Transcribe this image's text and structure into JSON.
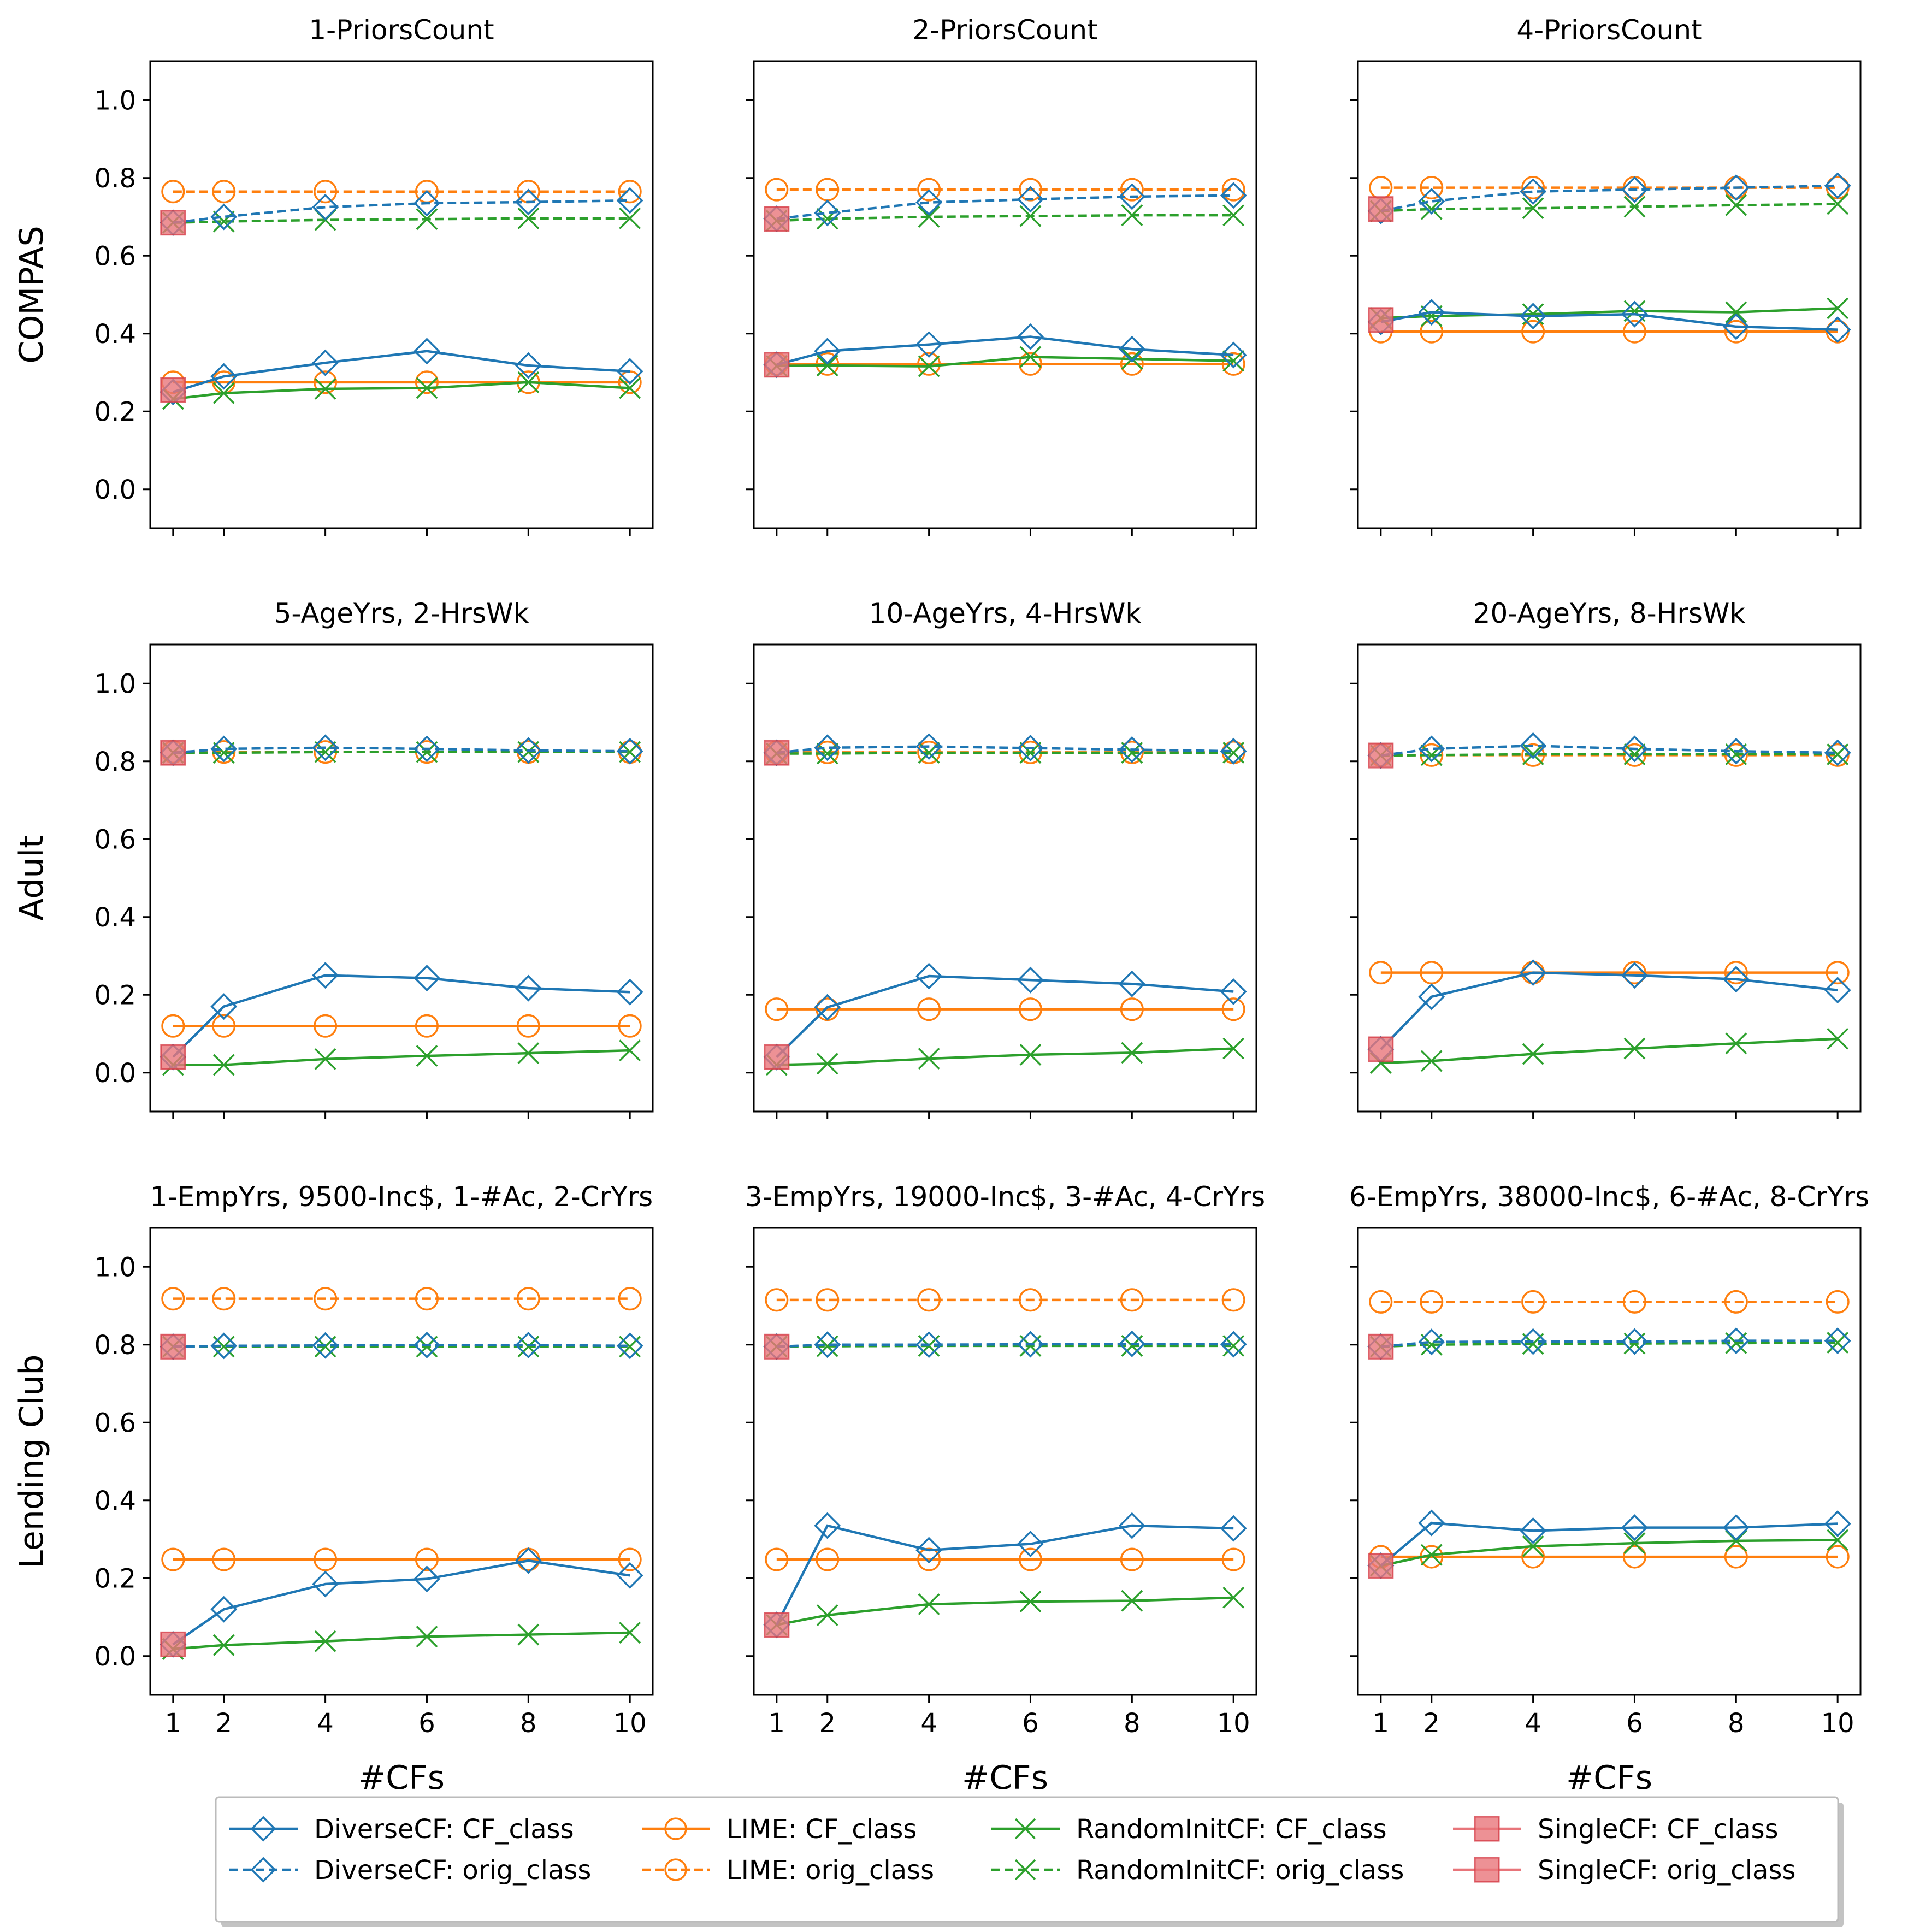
{
  "chart_data": {
    "type": "line",
    "xlabel": "#CFs",
    "x": [
      1,
      2,
      4,
      6,
      8,
      10
    ],
    "xticks": [
      1,
      2,
      4,
      6,
      8,
      10
    ],
    "ylim": [
      -0.1,
      1.1
    ],
    "yticks": [
      "0.0",
      "0.2",
      "0.4",
      "0.6",
      "0.8",
      "1.0"
    ],
    "row_labels": [
      "COMPAS",
      "Adult",
      "Lending Club"
    ],
    "legend": {
      "placement": "bottom-center",
      "entries": [
        {
          "key": "diverse_cf",
          "label": "DiverseCF: CF_class",
          "color": "#1f77b4",
          "marker": "diamond",
          "dashed": false
        },
        {
          "key": "diverse_orig",
          "label": "DiverseCF: orig_class",
          "color": "#1f77b4",
          "marker": "diamond",
          "dashed": true
        },
        {
          "key": "lime_cf",
          "label": "LIME: CF_class",
          "color": "#ff7f0e",
          "marker": "circle",
          "dashed": false
        },
        {
          "key": "lime_orig",
          "label": "LIME: orig_class",
          "color": "#ff7f0e",
          "marker": "circle",
          "dashed": true
        },
        {
          "key": "random_cf",
          "label": "RandomInitCF: CF_class",
          "color": "#2ca02c",
          "marker": "x",
          "dashed": false
        },
        {
          "key": "random_orig",
          "label": "RandomInitCF: orig_class",
          "color": "#2ca02c",
          "marker": "x",
          "dashed": true
        },
        {
          "key": "single_cf",
          "label": "SingleCF: CF_class",
          "color": "#e8757a",
          "marker": "square",
          "dashed": false
        },
        {
          "key": "single_orig",
          "label": "SingleCF: orig_class",
          "color": "#e8757a",
          "marker": "square",
          "dashed": false
        }
      ]
    },
    "panels": [
      {
        "title": "1-PriorsCount",
        "row": 0,
        "col": 0,
        "series": {
          "diverse_cf": [
            0.25,
            0.29,
            0.325,
            0.355,
            0.318,
            0.303
          ],
          "diverse_orig": [
            0.685,
            0.7,
            0.725,
            0.735,
            0.738,
            0.742
          ],
          "lime_cf": [
            0.275,
            0.275,
            0.275,
            0.275,
            0.275,
            0.275
          ],
          "lime_orig": [
            0.765,
            0.765,
            0.765,
            0.765,
            0.765,
            0.765
          ],
          "random_cf": [
            0.232,
            0.247,
            0.258,
            0.26,
            0.275,
            0.26
          ],
          "random_orig": [
            0.685,
            0.688,
            0.692,
            0.694,
            0.696,
            0.696
          ],
          "single_cf": [
            0.255
          ],
          "single_orig": [
            0.685
          ]
        }
      },
      {
        "title": "2-PriorsCount",
        "row": 0,
        "col": 1,
        "series": {
          "diverse_cf": [
            0.32,
            0.355,
            0.372,
            0.392,
            0.36,
            0.345
          ],
          "diverse_orig": [
            0.695,
            0.71,
            0.737,
            0.745,
            0.752,
            0.755
          ],
          "lime_cf": [
            0.322,
            0.322,
            0.322,
            0.322,
            0.322,
            0.322
          ],
          "lime_orig": [
            0.77,
            0.77,
            0.77,
            0.77,
            0.77,
            0.77
          ],
          "random_cf": [
            0.317,
            0.318,
            0.316,
            0.34,
            0.335,
            0.33
          ],
          "random_orig": [
            0.69,
            0.695,
            0.7,
            0.702,
            0.704,
            0.704
          ],
          "single_cf": [
            0.32
          ],
          "single_orig": [
            0.695
          ]
        }
      },
      {
        "title": "4-PriorsCount",
        "row": 0,
        "col": 2,
        "series": {
          "diverse_cf": [
            0.43,
            0.455,
            0.445,
            0.45,
            0.418,
            0.41
          ],
          "diverse_orig": [
            0.715,
            0.74,
            0.765,
            0.77,
            0.775,
            0.78
          ],
          "lime_cf": [
            0.405,
            0.405,
            0.405,
            0.405,
            0.405,
            0.405
          ],
          "lime_orig": [
            0.775,
            0.775,
            0.775,
            0.775,
            0.775,
            0.775
          ],
          "random_cf": [
            0.44,
            0.445,
            0.45,
            0.458,
            0.455,
            0.465
          ],
          "random_orig": [
            0.715,
            0.72,
            0.722,
            0.726,
            0.73,
            0.733
          ],
          "single_cf": [
            0.435
          ],
          "single_orig": [
            0.72
          ]
        }
      },
      {
        "title": "5-AgeYrs, 2-HrsWk",
        "row": 1,
        "col": 0,
        "series": {
          "diverse_cf": [
            0.04,
            0.17,
            0.25,
            0.243,
            0.217,
            0.207
          ],
          "diverse_orig": [
            0.822,
            0.832,
            0.835,
            0.832,
            0.828,
            0.826
          ],
          "lime_cf": [
            0.12,
            0.12,
            0.12,
            0.12,
            0.12,
            0.12
          ],
          "lime_orig": [
            0.824,
            0.824,
            0.824,
            0.824,
            0.824,
            0.824
          ],
          "random_cf": [
            0.02,
            0.02,
            0.035,
            0.043,
            0.05,
            0.057
          ],
          "random_orig": [
            0.822,
            0.822,
            0.824,
            0.824,
            0.824,
            0.824
          ],
          "single_cf": [
            0.04
          ],
          "single_orig": [
            0.822
          ]
        }
      },
      {
        "title": "10-AgeYrs, 4-HrsWk",
        "row": 1,
        "col": 1,
        "series": {
          "diverse_cf": [
            0.04,
            0.168,
            0.248,
            0.238,
            0.228,
            0.208
          ],
          "diverse_orig": [
            0.822,
            0.835,
            0.838,
            0.834,
            0.83,
            0.826
          ],
          "lime_cf": [
            0.163,
            0.163,
            0.163,
            0.163,
            0.163,
            0.163
          ],
          "lime_orig": [
            0.823,
            0.823,
            0.823,
            0.823,
            0.823,
            0.823
          ],
          "random_cf": [
            0.02,
            0.023,
            0.036,
            0.046,
            0.051,
            0.062
          ],
          "random_orig": [
            0.82,
            0.82,
            0.822,
            0.822,
            0.822,
            0.822
          ],
          "single_cf": [
            0.04
          ],
          "single_orig": [
            0.822
          ]
        }
      },
      {
        "title": "20-AgeYrs, 8-HrsWk",
        "row": 1,
        "col": 2,
        "series": {
          "diverse_cf": [
            0.06,
            0.195,
            0.257,
            0.25,
            0.24,
            0.212
          ],
          "diverse_orig": [
            0.815,
            0.832,
            0.84,
            0.832,
            0.826,
            0.822
          ],
          "lime_cf": [
            0.257,
            0.257,
            0.257,
            0.257,
            0.257,
            0.257
          ],
          "lime_orig": [
            0.816,
            0.816,
            0.816,
            0.816,
            0.816,
            0.816
          ],
          "random_cf": [
            0.025,
            0.03,
            0.048,
            0.062,
            0.075,
            0.087
          ],
          "random_orig": [
            0.815,
            0.816,
            0.818,
            0.818,
            0.818,
            0.818
          ],
          "single_cf": [
            0.06
          ],
          "single_orig": [
            0.815
          ]
        }
      },
      {
        "title": "1-EmpYrs, 9500-Inc$, 1-#Ac, 2-CrYrs",
        "row": 2,
        "col": 0,
        "series": {
          "diverse_cf": [
            0.03,
            0.12,
            0.185,
            0.198,
            0.245,
            0.207
          ],
          "diverse_orig": [
            0.795,
            0.797,
            0.798,
            0.799,
            0.799,
            0.797
          ],
          "lime_cf": [
            0.248,
            0.248,
            0.248,
            0.248,
            0.248,
            0.248
          ],
          "lime_orig": [
            0.918,
            0.918,
            0.918,
            0.918,
            0.918,
            0.918
          ],
          "random_cf": [
            0.018,
            0.028,
            0.038,
            0.05,
            0.055,
            0.06
          ],
          "random_orig": [
            0.795,
            0.795,
            0.795,
            0.795,
            0.795,
            0.795
          ],
          "single_cf": [
            0.03
          ],
          "single_orig": [
            0.795
          ]
        }
      },
      {
        "title": "3-EmpYrs, 19000-Inc$, 3-#Ac, 4-CrYrs",
        "row": 2,
        "col": 1,
        "series": {
          "diverse_cf": [
            0.08,
            0.335,
            0.272,
            0.288,
            0.335,
            0.328
          ],
          "diverse_orig": [
            0.795,
            0.8,
            0.8,
            0.801,
            0.802,
            0.801
          ],
          "lime_cf": [
            0.248,
            0.248,
            0.248,
            0.248,
            0.248,
            0.248
          ],
          "lime_orig": [
            0.915,
            0.915,
            0.915,
            0.915,
            0.915,
            0.915
          ],
          "random_cf": [
            0.08,
            0.105,
            0.133,
            0.14,
            0.142,
            0.15
          ],
          "random_orig": [
            0.795,
            0.796,
            0.797,
            0.797,
            0.797,
            0.797
          ],
          "single_cf": [
            0.08
          ],
          "single_orig": [
            0.795
          ]
        }
      },
      {
        "title": "6-EmpYrs, 38000-Inc$, 6-#Ac, 8-CrYrs",
        "row": 2,
        "col": 2,
        "series": {
          "diverse_cf": [
            0.232,
            0.342,
            0.322,
            0.33,
            0.33,
            0.34
          ],
          "diverse_orig": [
            0.795,
            0.807,
            0.808,
            0.808,
            0.81,
            0.81
          ],
          "lime_cf": [
            0.255,
            0.255,
            0.255,
            0.255,
            0.255,
            0.255
          ],
          "lime_orig": [
            0.91,
            0.91,
            0.91,
            0.91,
            0.91,
            0.91
          ],
          "random_cf": [
            0.232,
            0.26,
            0.282,
            0.29,
            0.296,
            0.298
          ],
          "random_orig": [
            0.795,
            0.8,
            0.802,
            0.803,
            0.804,
            0.805
          ],
          "single_cf": [
            0.232
          ],
          "single_orig": [
            0.795
          ]
        }
      }
    ]
  }
}
